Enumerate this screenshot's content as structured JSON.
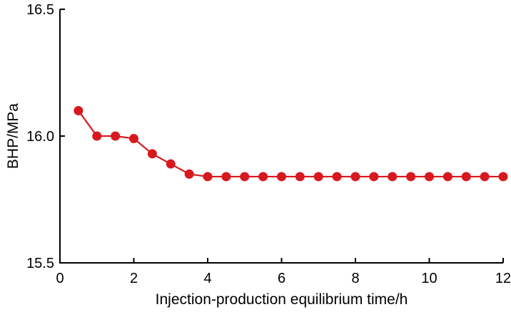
{
  "chart_data": {
    "type": "line",
    "title": "",
    "xlabel": "Injection-production equilibrium time/h",
    "ylabel": "BHP/MPa",
    "xlim": [
      0,
      12
    ],
    "ylim": [
      15.5,
      16.5
    ],
    "xticks": [
      0,
      2,
      4,
      6,
      8,
      10,
      12
    ],
    "yticks": [
      15.5,
      16.0,
      16.5
    ],
    "grid": false,
    "legend": false,
    "axis_color": "#000000",
    "background": "#ffffff",
    "series": [
      {
        "name": "BHP",
        "color": "#d8181f",
        "marker": "circle",
        "x": [
          0.5,
          1.0,
          1.5,
          2.0,
          2.5,
          3.0,
          3.5,
          4.0,
          4.5,
          5.0,
          5.5,
          6.0,
          6.5,
          7.0,
          7.5,
          8.0,
          8.5,
          9.0,
          9.5,
          10.0,
          10.5,
          11.0,
          11.5,
          12.0
        ],
        "y": [
          16.1,
          16.0,
          16.0,
          15.99,
          15.93,
          15.89,
          15.85,
          15.84,
          15.84,
          15.84,
          15.84,
          15.84,
          15.84,
          15.84,
          15.84,
          15.84,
          15.84,
          15.84,
          15.84,
          15.84,
          15.84,
          15.84,
          15.84,
          15.84
        ]
      }
    ]
  }
}
